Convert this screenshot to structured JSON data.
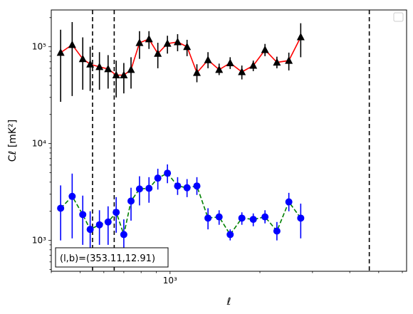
{
  "chart_data": {
    "type": "line",
    "xscale": "log",
    "yscale": "log",
    "xlim": [
      400,
      6200
    ],
    "ylim": [
      480,
      240000
    ],
    "xlabel": "ℓ",
    "ylabel": "Cℓ  [mK²]",
    "x_ticks": [
      {
        "value": 1000,
        "label": "10³"
      }
    ],
    "y_ticks": [
      {
        "value": 1000,
        "label": "10³"
      },
      {
        "value": 10000,
        "label": "10⁴"
      },
      {
        "value": 100000,
        "label": "10⁵"
      }
    ],
    "annotation": "(l,b)=(353.11,12.91)",
    "legend": {
      "placement": "top-right",
      "entries": []
    },
    "grid": false,
    "vlines": [
      {
        "x": 550,
        "color": "#000000",
        "style": "dashed"
      },
      {
        "x": 650,
        "color": "#000000",
        "style": "dashed"
      },
      {
        "x": 4650,
        "color": "#000000",
        "style": "dashed"
      }
    ],
    "series": [
      {
        "line_color": "#ff0000",
        "marker_color": "#000000",
        "line_style": "solid",
        "marker": "triangle",
        "points": [
          {
            "x": 430,
            "y": 87000,
            "lo": 27000,
            "hi": 150000
          },
          {
            "x": 470,
            "y": 105000,
            "lo": 31000,
            "hi": 180000
          },
          {
            "x": 510,
            "y": 75000,
            "lo": 36000,
            "hi": 125000
          },
          {
            "x": 540,
            "y": 66000,
            "lo": 35000,
            "hi": 100000
          },
          {
            "x": 580,
            "y": 62000,
            "lo": 36000,
            "hi": 88000
          },
          {
            "x": 620,
            "y": 59000,
            "lo": 37000,
            "hi": 82000
          },
          {
            "x": 660,
            "y": 51000,
            "lo": 30000,
            "hi": 72000
          },
          {
            "x": 700,
            "y": 51000,
            "lo": 33000,
            "hi": 68000
          },
          {
            "x": 740,
            "y": 58000,
            "lo": 37000,
            "hi": 78000
          },
          {
            "x": 790,
            "y": 110000,
            "lo": 75000,
            "hi": 145000
          },
          {
            "x": 850,
            "y": 120000,
            "lo": 95000,
            "hi": 145000
          },
          {
            "x": 910,
            "y": 85000,
            "lo": 60000,
            "hi": 110000
          },
          {
            "x": 980,
            "y": 108000,
            "lo": 85000,
            "hi": 130000
          },
          {
            "x": 1060,
            "y": 112000,
            "lo": 90000,
            "hi": 135000
          },
          {
            "x": 1140,
            "y": 100000,
            "lo": 80000,
            "hi": 118000
          },
          {
            "x": 1230,
            "y": 54000,
            "lo": 43000,
            "hi": 66000
          },
          {
            "x": 1340,
            "y": 73000,
            "lo": 60000,
            "hi": 88000
          },
          {
            "x": 1460,
            "y": 58000,
            "lo": 51000,
            "hi": 67000
          },
          {
            "x": 1590,
            "y": 68000,
            "lo": 59000,
            "hi": 78000
          },
          {
            "x": 1740,
            "y": 55000,
            "lo": 46000,
            "hi": 64000
          },
          {
            "x": 1900,
            "y": 64000,
            "lo": 56000,
            "hi": 72000
          },
          {
            "x": 2080,
            "y": 93000,
            "lo": 80000,
            "hi": 107000
          },
          {
            "x": 2280,
            "y": 69000,
            "lo": 60000,
            "hi": 79000
          },
          {
            "x": 2500,
            "y": 72000,
            "lo": 57000,
            "hi": 87000
          },
          {
            "x": 2740,
            "y": 126000,
            "lo": 78000,
            "hi": 175000
          }
        ]
      },
      {
        "line_color": "#008000",
        "marker_color": "#0000ff",
        "line_style": "dashed",
        "marker": "circle",
        "points": [
          {
            "x": 430,
            "y": 2150,
            "lo": 1000,
            "hi": 3700
          },
          {
            "x": 470,
            "y": 2850,
            "lo": 1050,
            "hi": 4900
          },
          {
            "x": 510,
            "y": 1850,
            "lo": 900,
            "hi": 2900
          },
          {
            "x": 540,
            "y": 1300,
            "lo": 700,
            "hi": 2000
          },
          {
            "x": 580,
            "y": 1450,
            "lo": 900,
            "hi": 2050
          },
          {
            "x": 620,
            "y": 1550,
            "lo": 900,
            "hi": 2250
          },
          {
            "x": 660,
            "y": 1950,
            "lo": 1200,
            "hi": 2800
          },
          {
            "x": 700,
            "y": 1150,
            "lo": 800,
            "hi": 1650
          },
          {
            "x": 740,
            "y": 2550,
            "lo": 1600,
            "hi": 3500
          },
          {
            "x": 790,
            "y": 3400,
            "lo": 2300,
            "hi": 4600
          },
          {
            "x": 850,
            "y": 3450,
            "lo": 2450,
            "hi": 4500
          },
          {
            "x": 910,
            "y": 4400,
            "lo": 3350,
            "hi": 5500
          },
          {
            "x": 980,
            "y": 4950,
            "lo": 3900,
            "hi": 6100
          },
          {
            "x": 1060,
            "y": 3650,
            "lo": 2950,
            "hi": 4500
          },
          {
            "x": 1140,
            "y": 3500,
            "lo": 2800,
            "hi": 4300
          },
          {
            "x": 1230,
            "y": 3650,
            "lo": 2950,
            "hi": 4500
          },
          {
            "x": 1340,
            "y": 1700,
            "lo": 1300,
            "hi": 2150
          },
          {
            "x": 1460,
            "y": 1750,
            "lo": 1450,
            "hi": 2050
          },
          {
            "x": 1590,
            "y": 1150,
            "lo": 1000,
            "hi": 1300
          },
          {
            "x": 1740,
            "y": 1700,
            "lo": 1450,
            "hi": 1950
          },
          {
            "x": 1900,
            "y": 1650,
            "lo": 1400,
            "hi": 1900
          },
          {
            "x": 2080,
            "y": 1750,
            "lo": 1500,
            "hi": 2050
          },
          {
            "x": 2280,
            "y": 1250,
            "lo": 1000,
            "hi": 1550
          },
          {
            "x": 2500,
            "y": 2500,
            "lo": 2000,
            "hi": 3100
          },
          {
            "x": 2740,
            "y": 1700,
            "lo": 1050,
            "hi": 2400
          }
        ]
      }
    ]
  }
}
